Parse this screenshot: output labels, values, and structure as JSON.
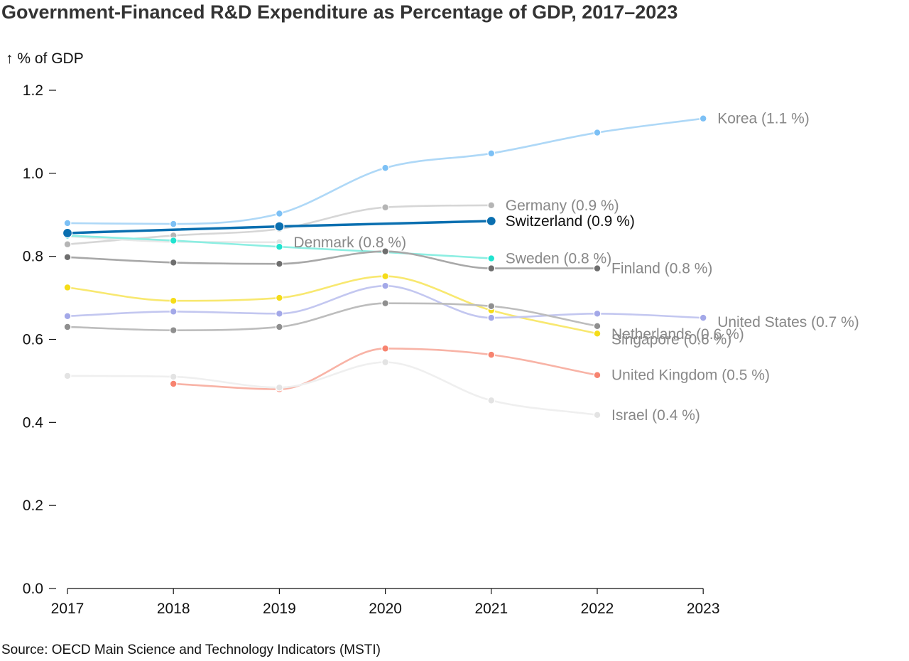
{
  "chart_data": {
    "type": "line",
    "title": "Government-Financed R&D Expenditure as Percentage of GDP, 2017–2023",
    "ylabel": "↑ % of GDP",
    "xlabel": "",
    "source": "Source: OECD Main Science and Technology Indicators (MSTI)",
    "x": [
      2017,
      2018,
      2019,
      2020,
      2021,
      2022,
      2023
    ],
    "x_tick_labels": [
      "2017",
      "2018",
      "2019",
      "2020",
      "2021",
      "2022",
      "2023"
    ],
    "y_ticks": [
      0.0,
      0.2,
      0.4,
      0.6,
      0.8,
      1.0,
      1.2
    ],
    "y_tick_labels": [
      "0.0",
      "0.2",
      "0.4",
      "0.6",
      "0.8",
      "1.0",
      "1.2"
    ],
    "ylim": [
      0,
      1.2
    ],
    "grid": false,
    "legend": "inline labels at line ends",
    "highlighted_series": "Switzerland",
    "series": [
      {
        "name": "Korea",
        "label": "Korea (1.1 %)",
        "color": "#7cc0f5",
        "line_color": "#aed8f7",
        "label_color": "#888888",
        "values": [
          0.88,
          0.878,
          0.903,
          1.013,
          1.048,
          1.098,
          1.132
        ]
      },
      {
        "name": "Germany",
        "label": "Germany (0.9 %)",
        "color": "#b5b5b5",
        "line_color": "#d6d6d6",
        "label_color": "#888888",
        "values": [
          0.829,
          0.85,
          0.866,
          0.918,
          0.923,
          null,
          null
        ]
      },
      {
        "name": "Denmark",
        "label": "Denmark (0.8 %)",
        "color": "#e2e2e2",
        "line_color": "#e8e8e8",
        "label_color": "#888888",
        "values": [
          0.848,
          0.835,
          0.834,
          null,
          null,
          null,
          null
        ]
      },
      {
        "name": "Sweden",
        "label": "Sweden (0.8 %)",
        "color": "#20e3cf",
        "line_color": "#8ceee2",
        "label_color": "#888888",
        "values": [
          0.85,
          0.838,
          0.823,
          0.81,
          0.795,
          null,
          null
        ]
      },
      {
        "name": "Finland",
        "label": "Finland (0.8 %)",
        "color": "#6e6e6e",
        "line_color": "#a8a8a8",
        "label_color": "#888888",
        "values": [
          0.798,
          0.785,
          0.782,
          0.812,
          0.771,
          0.771,
          null
        ]
      },
      {
        "name": "Singapore",
        "label": "Singapore (0.6 %)",
        "color": "#f5dc18",
        "line_color": "#f8e870",
        "label_color": "#888888",
        "values": [
          0.725,
          0.693,
          0.7,
          0.752,
          0.67,
          0.614,
          null
        ]
      },
      {
        "name": "United States",
        "label": "United States (0.7 %)",
        "color": "#a3a8e8",
        "line_color": "#c3c7f0",
        "label_color": "#888888",
        "values": [
          0.656,
          0.667,
          0.662,
          0.729,
          0.652,
          0.662,
          0.652
        ]
      },
      {
        "name": "Netherlands",
        "label": "Netherlands (0.6 %)",
        "color": "#8f8f8f",
        "line_color": "#bdbdbd",
        "label_color": "#888888",
        "values": [
          0.63,
          0.622,
          0.63,
          0.687,
          0.68,
          0.632,
          null
        ]
      },
      {
        "name": "United Kingdom",
        "label": "United Kingdom (0.5 %)",
        "color": "#f7836f",
        "line_color": "#f8b3a6",
        "label_color": "#888888",
        "values": [
          null,
          0.493,
          0.48,
          0.578,
          0.563,
          0.514,
          null
        ]
      },
      {
        "name": "Israel",
        "label": "Israel (0.4 %)",
        "color": "#e3e3e3",
        "line_color": "#efefef",
        "label_color": "#888888",
        "values": [
          0.512,
          0.51,
          0.484,
          0.545,
          0.453,
          0.418,
          null
        ]
      },
      {
        "name": "Switzerland",
        "label": "Switzerland (0.9 %)",
        "color": "#0a6fb0",
        "line_color": "#0a6fb0",
        "label_color": "#111111",
        "values": [
          0.856,
          null,
          0.872,
          null,
          0.885,
          null,
          null
        ]
      }
    ]
  }
}
